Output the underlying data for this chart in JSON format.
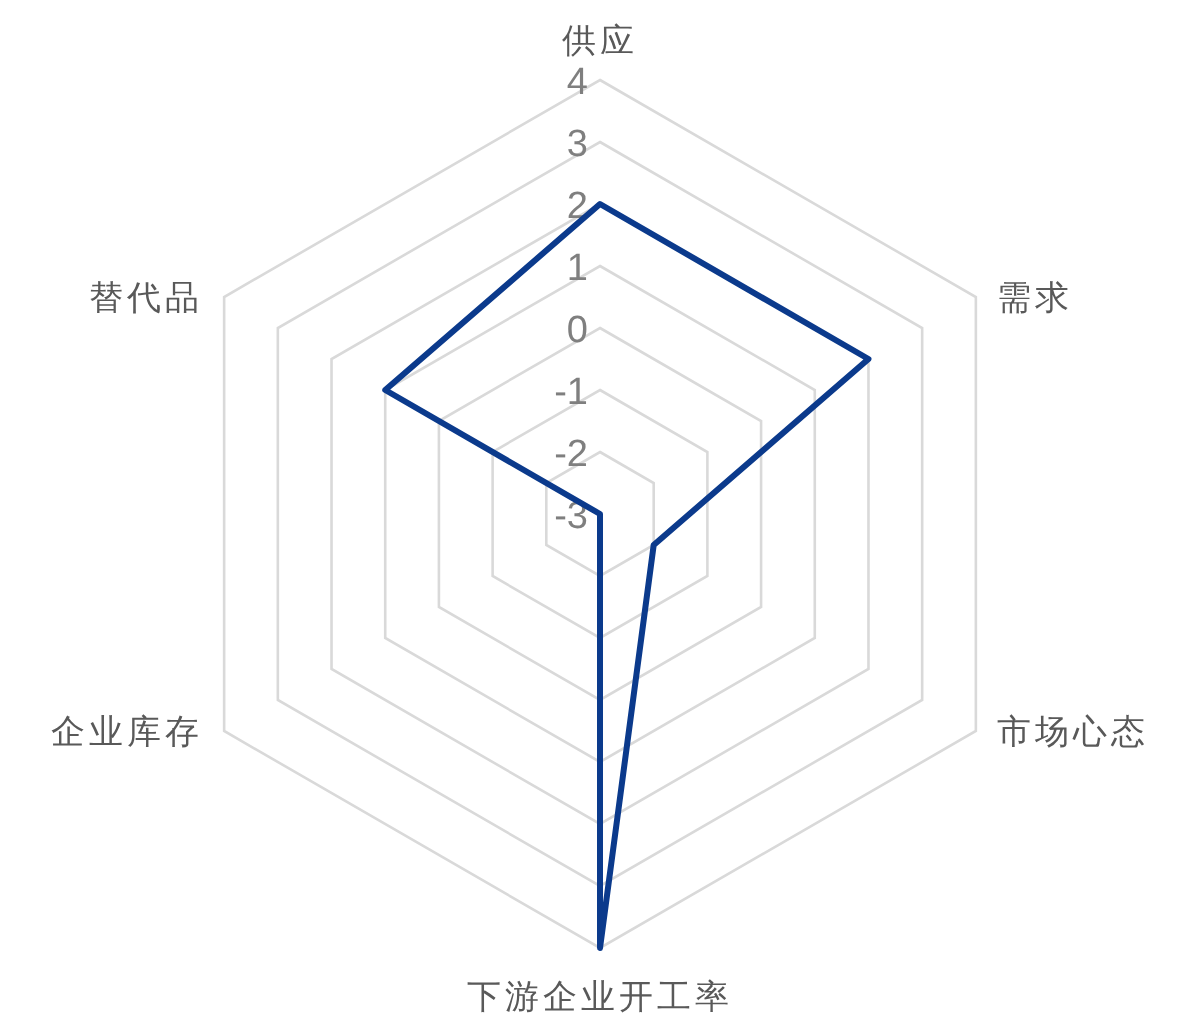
{
  "chart_data": {
    "type": "radar",
    "categories": [
      "供应",
      "需求",
      "市场心态",
      "下游企业开工率",
      "企业库存",
      "替代品"
    ],
    "series": [
      {
        "color": "#0b3a8c",
        "values": [
          2,
          2,
          -2,
          4,
          -3,
          1
        ]
      }
    ],
    "ylim": [
      -3,
      4
    ],
    "yticks": [
      -3,
      -2,
      -1,
      0,
      1,
      2,
      3,
      4
    ],
    "grid": true
  }
}
